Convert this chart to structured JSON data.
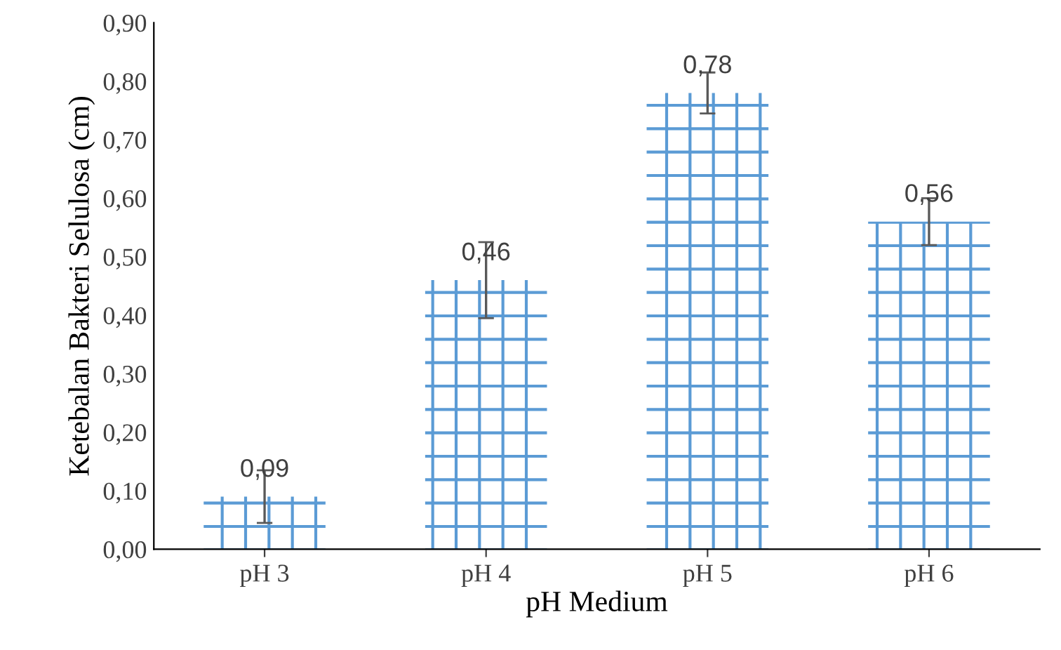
{
  "chart_data": {
    "type": "bar",
    "xlabel": "pH Medium",
    "ylabel": "Ketebalan Bakteri Selulosa (cm)",
    "categories": [
      "pH 3",
      "pH 4",
      "pH 5",
      "pH 6"
    ],
    "values": [
      0.09,
      0.46,
      0.78,
      0.56
    ],
    "errors": [
      0.045,
      0.065,
      0.035,
      0.04
    ],
    "value_labels": [
      "0,09",
      "0,46",
      "0,78",
      "0,56"
    ],
    "color": "#5b9bd5",
    "ylim": [
      0,
      0.9
    ],
    "yticks": [
      {
        "value": 0,
        "label": "0,00"
      },
      {
        "value": 0.1,
        "label": "0,10"
      },
      {
        "value": 0.2,
        "label": "0,20"
      },
      {
        "value": 0.3,
        "label": "0,30"
      },
      {
        "value": 0.4,
        "label": "0,40"
      },
      {
        "value": 0.5,
        "label": "0,50"
      },
      {
        "value": 0.6,
        "label": "0,60"
      },
      {
        "value": 0.7,
        "label": "0,70"
      },
      {
        "value": 0.8,
        "label": "0,80"
      },
      {
        "value": 0.9,
        "label": "0,90"
      }
    ],
    "grid": false,
    "legend": false
  }
}
